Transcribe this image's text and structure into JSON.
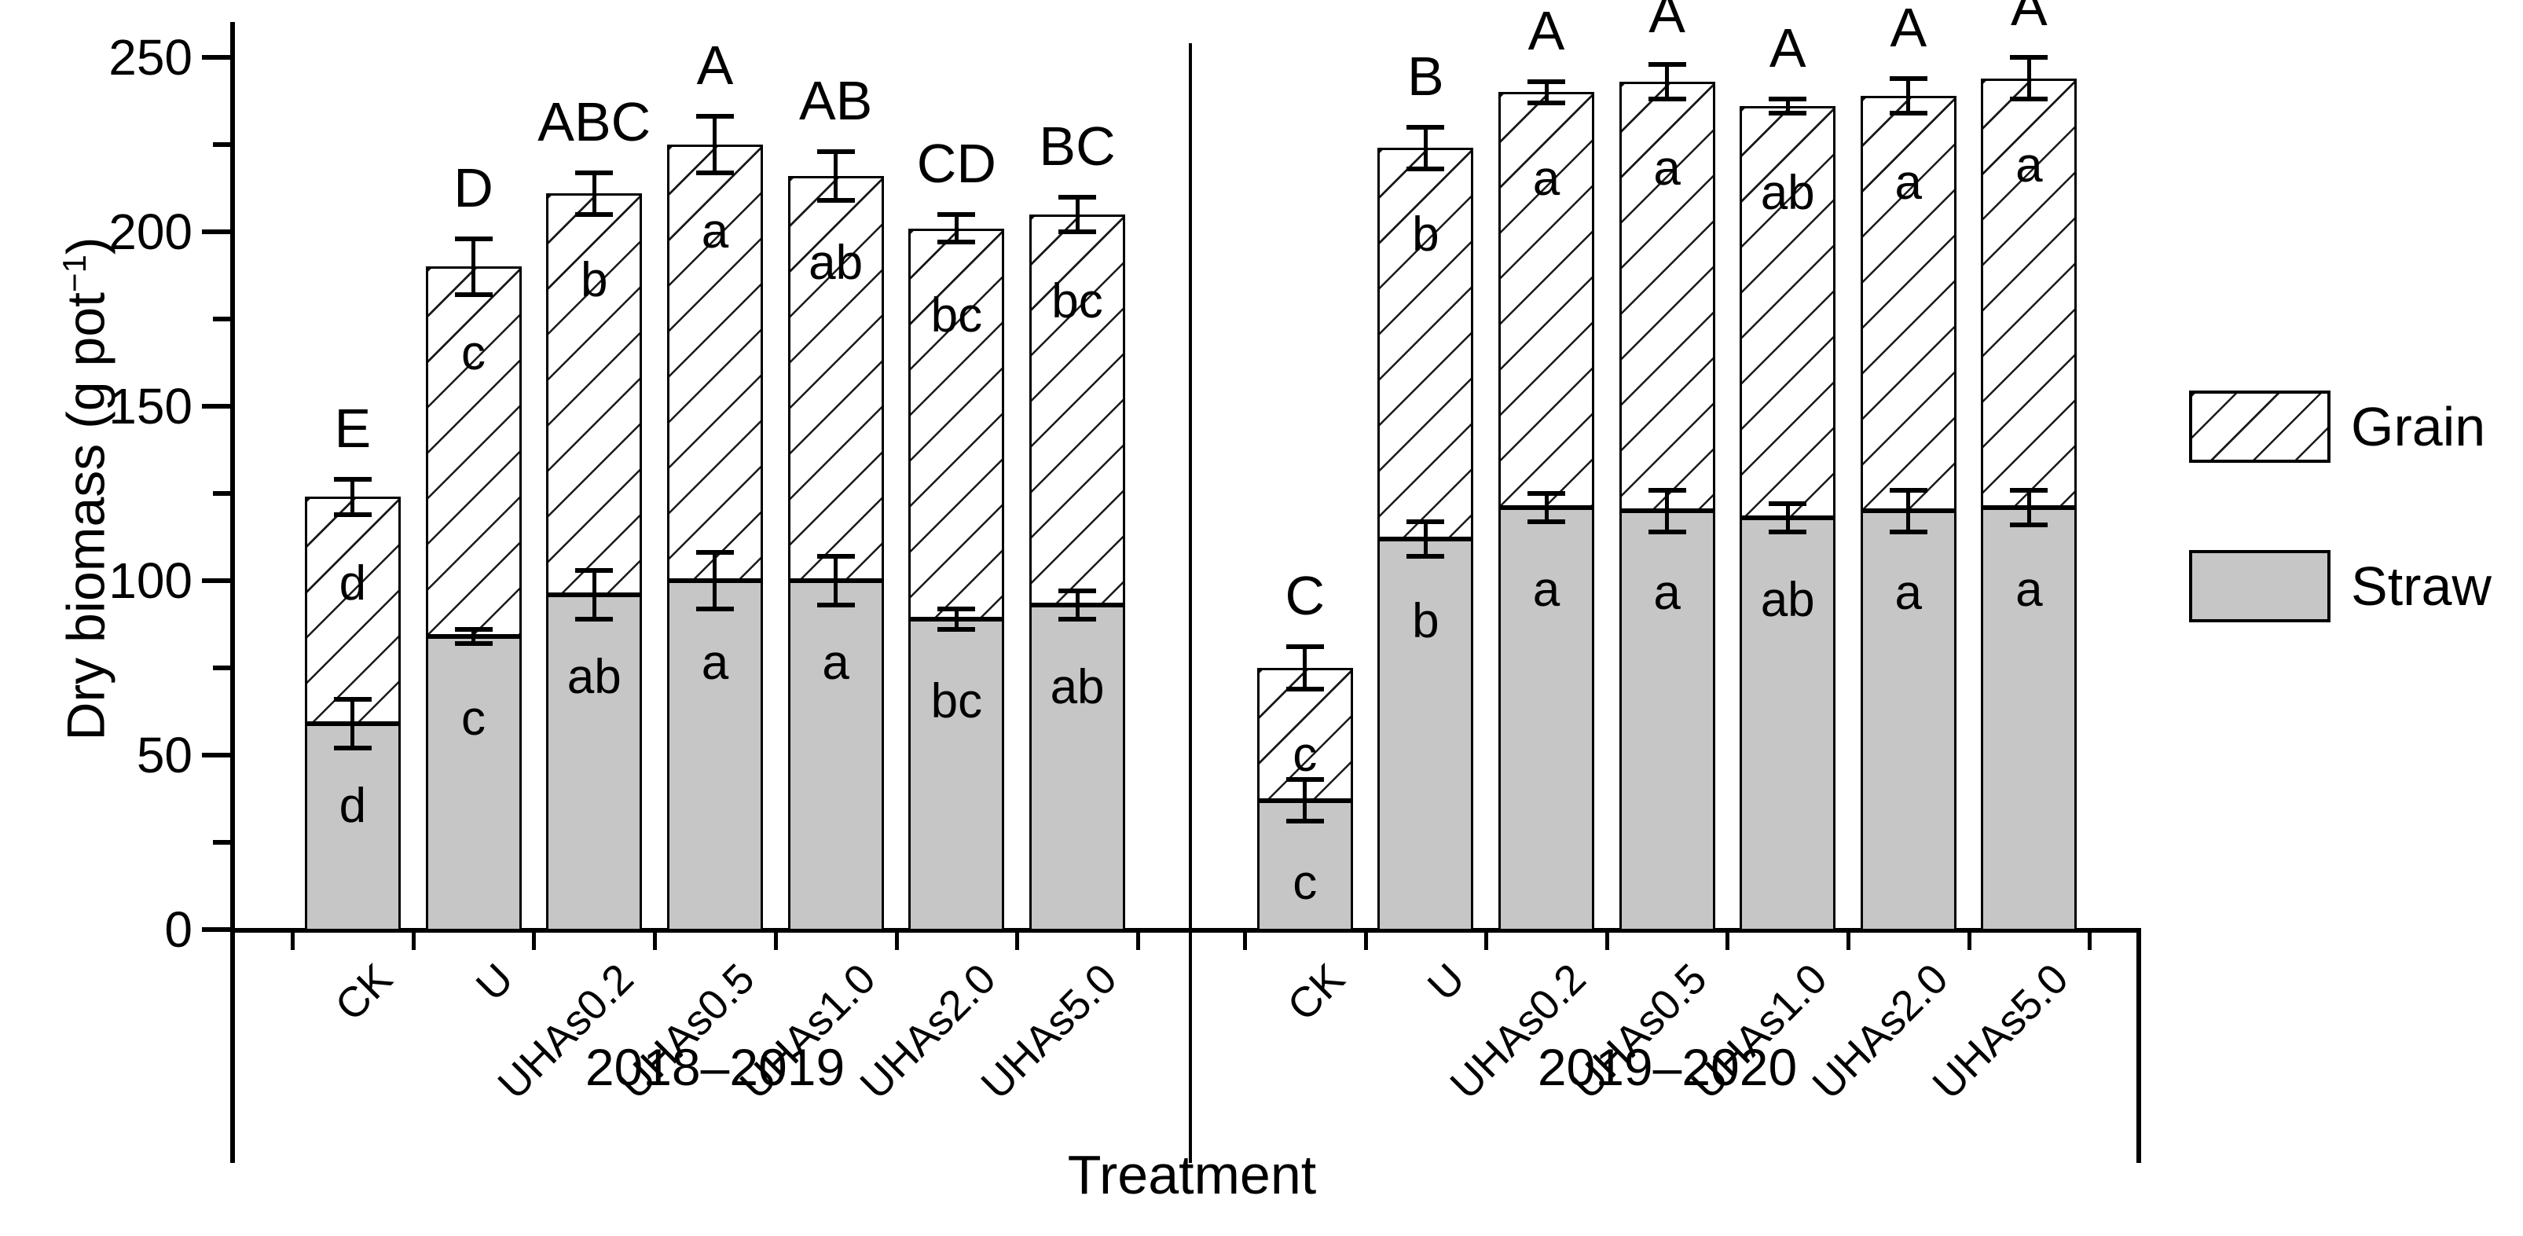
{
  "figure_type": "stacked-bar-figure",
  "axes": {
    "y_label_main": "Dry biomass (g pot",
    "y_label_sup": "−1",
    "y_label_close": ")",
    "y_label_full": "Dry biomass (g pot−1)",
    "x_label": "Treatment"
  },
  "legend": {
    "position": "right",
    "items": [
      {
        "label": "Grain",
        "fill": "hatch"
      },
      {
        "label": "Straw",
        "fill": "#c6c6c6"
      }
    ]
  },
  "chart_data": {
    "type": "bar",
    "stacked": true,
    "grid": false,
    "title": "",
    "xlabel": "Treatment",
    "ylabel": "Dry biomass (g pot−1)",
    "ylim": [
      0,
      250
    ],
    "yticks": [
      0,
      50,
      100,
      150,
      200,
      250
    ],
    "minor_ytick_step": 25,
    "series_names": [
      "Straw",
      "Grain"
    ],
    "groups": [
      {
        "season": "2018–2019",
        "categories": [
          "CK",
          "U",
          "UHAs0.2",
          "UHAs0.5",
          "UHAs1.0",
          "UHAs2.0",
          "UHAs5.0"
        ],
        "bars": [
          {
            "treatment": "CK",
            "straw": 59,
            "grain": 65,
            "total": 124,
            "straw_err": 7,
            "total_err": 5,
            "letter_total": "E",
            "letter_grain": "d",
            "letter_straw": "d"
          },
          {
            "treatment": "U",
            "straw": 84,
            "grain": 106,
            "total": 190,
            "straw_err": 2,
            "total_err": 8,
            "letter_total": "D",
            "letter_grain": "c",
            "letter_straw": "c"
          },
          {
            "treatment": "UHAs0.2",
            "straw": 96,
            "grain": 115,
            "total": 211,
            "straw_err": 7,
            "total_err": 6,
            "letter_total": "ABC",
            "letter_grain": "b",
            "letter_straw": "ab"
          },
          {
            "treatment": "UHAs0.5",
            "straw": 100,
            "grain": 125,
            "total": 225,
            "straw_err": 8,
            "total_err": 8,
            "letter_total": "A",
            "letter_grain": "a",
            "letter_straw": "a"
          },
          {
            "treatment": "UHAs1.0",
            "straw": 100,
            "grain": 116,
            "total": 216,
            "straw_err": 7,
            "total_err": 7,
            "letter_total": "AB",
            "letter_grain": "ab",
            "letter_straw": "a"
          },
          {
            "treatment": "UHAs2.0",
            "straw": 89,
            "grain": 112,
            "total": 201,
            "straw_err": 3,
            "total_err": 4,
            "letter_total": "CD",
            "letter_grain": "bc",
            "letter_straw": "bc"
          },
          {
            "treatment": "UHAs5.0",
            "straw": 93,
            "grain": 112,
            "total": 205,
            "straw_err": 4,
            "total_err": 5,
            "letter_total": "BC",
            "letter_grain": "bc",
            "letter_straw": "ab"
          }
        ]
      },
      {
        "season": "2019–2020",
        "categories": [
          "CK",
          "U",
          "UHAs0.2",
          "UHAs0.5",
          "UHAs1.0",
          "UHAs2.0",
          "UHAs5.0"
        ],
        "bars": [
          {
            "treatment": "CK",
            "straw": 37,
            "grain": 38,
            "total": 75,
            "straw_err": 6,
            "total_err": 6,
            "letter_total": "C",
            "letter_grain": "c",
            "letter_straw": "c"
          },
          {
            "treatment": "U",
            "straw": 112,
            "grain": 112,
            "total": 224,
            "straw_err": 5,
            "total_err": 6,
            "letter_total": "B",
            "letter_grain": "b",
            "letter_straw": "b"
          },
          {
            "treatment": "UHAs0.2",
            "straw": 121,
            "grain": 119,
            "total": 240,
            "straw_err": 4,
            "total_err": 3,
            "letter_total": "A",
            "letter_grain": "a",
            "letter_straw": "a"
          },
          {
            "treatment": "UHAs0.5",
            "straw": 120,
            "grain": 123,
            "total": 243,
            "straw_err": 6,
            "total_err": 5,
            "letter_total": "A",
            "letter_grain": "a",
            "letter_straw": "a"
          },
          {
            "treatment": "UHAs1.0",
            "straw": 118,
            "grain": 118,
            "total": 236,
            "straw_err": 4,
            "total_err": 2,
            "letter_total": "A",
            "letter_grain": "ab",
            "letter_straw": "ab"
          },
          {
            "treatment": "UHAs2.0",
            "straw": 120,
            "grain": 119,
            "total": 239,
            "straw_err": 6,
            "total_err": 5,
            "letter_total": "A",
            "letter_grain": "a",
            "letter_straw": "a"
          },
          {
            "treatment": "UHAs5.0",
            "straw": 121,
            "grain": 123,
            "total": 244,
            "straw_err": 5,
            "total_err": 6,
            "letter_total": "A",
            "letter_grain": "a",
            "letter_straw": "a"
          }
        ]
      }
    ]
  }
}
